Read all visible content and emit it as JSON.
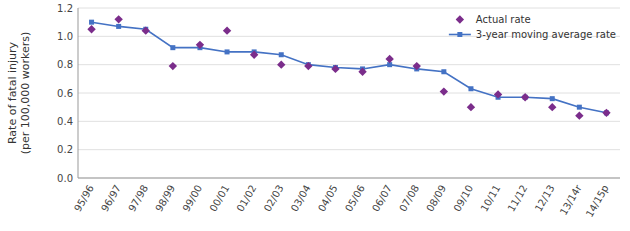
{
  "chart_data": {
    "type": "line",
    "categories": [
      "95/96",
      "96/97",
      "97/98",
      "98/99",
      "99/00",
      "00/01",
      "01/02",
      "02/03",
      "03/04",
      "04/05",
      "05/06",
      "06/07",
      "07/08",
      "08/09",
      "09/10",
      "10/11",
      "11/12",
      "12/13",
      "13/14r",
      "14/15p"
    ],
    "series": [
      {
        "name": "Actual rate",
        "type": "scatter",
        "color": "#7B2D8B",
        "marker": "diamond",
        "values": [
          1.05,
          1.12,
          1.04,
          0.79,
          0.94,
          1.04,
          0.87,
          0.8,
          0.79,
          0.77,
          0.75,
          0.84,
          0.79,
          0.61,
          0.5,
          0.59,
          0.57,
          0.5,
          0.44,
          0.46
        ]
      },
      {
        "name": "3-year moving average rate",
        "type": "line",
        "color": "#4472C4",
        "marker": "square",
        "values": [
          1.1,
          1.07,
          1.05,
          0.92,
          0.92,
          0.89,
          0.89,
          0.87,
          0.8,
          0.78,
          0.77,
          0.8,
          0.77,
          0.75,
          0.63,
          0.57,
          0.57,
          0.56,
          0.5,
          0.46
        ]
      }
    ],
    "y_label": "Rate of fatal injury\n(per 100,000 workers)",
    "ylim": [
      0.0,
      1.2
    ],
    "yticks": [
      {
        "value": 0,
        "label": "0.0"
      },
      0.2,
      0.4,
      0.6,
      0.8,
      {
        "value": 1,
        "label": "1.0"
      },
      1.2
    ],
    "grid": true,
    "legend": "upper right"
  }
}
